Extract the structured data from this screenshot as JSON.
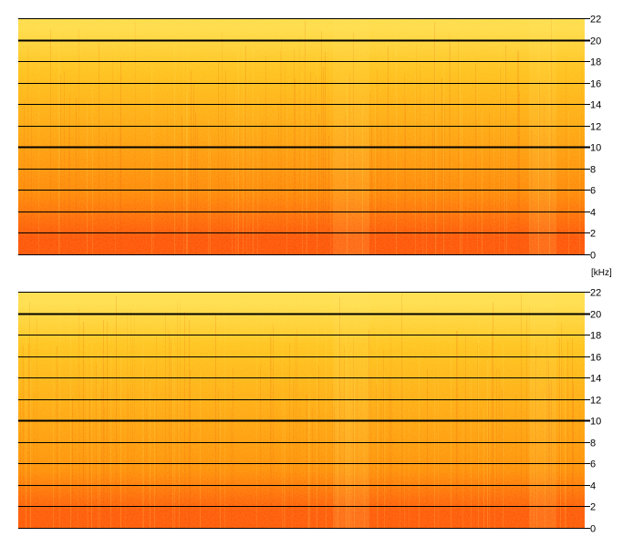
{
  "chart_data": [
    {
      "type": "heatmap",
      "name": "channel-top",
      "title": "",
      "xlabel": "",
      "ylabel": "",
      "y_unit": "[kHz]",
      "ylim": [
        0,
        22
      ],
      "y_ticks": [
        0,
        2,
        4,
        6,
        8,
        10,
        12,
        14,
        16,
        18,
        20,
        22
      ],
      "y_tick_labels": [
        "0",
        "2",
        "4",
        "6",
        "8",
        "10",
        "12",
        "14",
        "16",
        "18",
        "20",
        "22"
      ],
      "major_lines": [
        10,
        20
      ],
      "grid": true,
      "colormap": [
        "#ff2a00",
        "#ff8c00",
        "#ffc61a",
        "#fff27a"
      ],
      "intensity_bands": [
        {
          "from_khz": 0,
          "to_khz": 3,
          "level": 0.12
        },
        {
          "from_khz": 3,
          "to_khz": 8,
          "level": 0.3
        },
        {
          "from_khz": 8,
          "to_khz": 14,
          "level": 0.45
        },
        {
          "from_khz": 14,
          "to_khz": 20,
          "level": 0.62
        },
        {
          "from_khz": 20,
          "to_khz": 22,
          "level": 0.82
        }
      ]
    },
    {
      "type": "heatmap",
      "name": "channel-bottom",
      "title": "",
      "xlabel": "",
      "ylabel": "",
      "y_unit": "",
      "ylim": [
        0,
        22
      ],
      "y_ticks": [
        0,
        2,
        4,
        6,
        8,
        10,
        12,
        14,
        16,
        18,
        20,
        22
      ],
      "y_tick_labels": [
        "0",
        "2",
        "4",
        "6",
        "8",
        "10",
        "12",
        "14",
        "16",
        "18",
        "20",
        "22"
      ],
      "major_lines": [
        10,
        20
      ],
      "grid": true,
      "colormap": [
        "#ff2a00",
        "#ff8c00",
        "#ffc61a",
        "#fff27a"
      ],
      "intensity_bands": [
        {
          "from_khz": 0,
          "to_khz": 3,
          "level": 0.14
        },
        {
          "from_khz": 3,
          "to_khz": 8,
          "level": 0.34
        },
        {
          "from_khz": 8,
          "to_khz": 14,
          "level": 0.48
        },
        {
          "from_khz": 14,
          "to_khz": 20,
          "level": 0.64
        },
        {
          "from_khz": 20,
          "to_khz": 22,
          "level": 0.84
        }
      ]
    }
  ]
}
